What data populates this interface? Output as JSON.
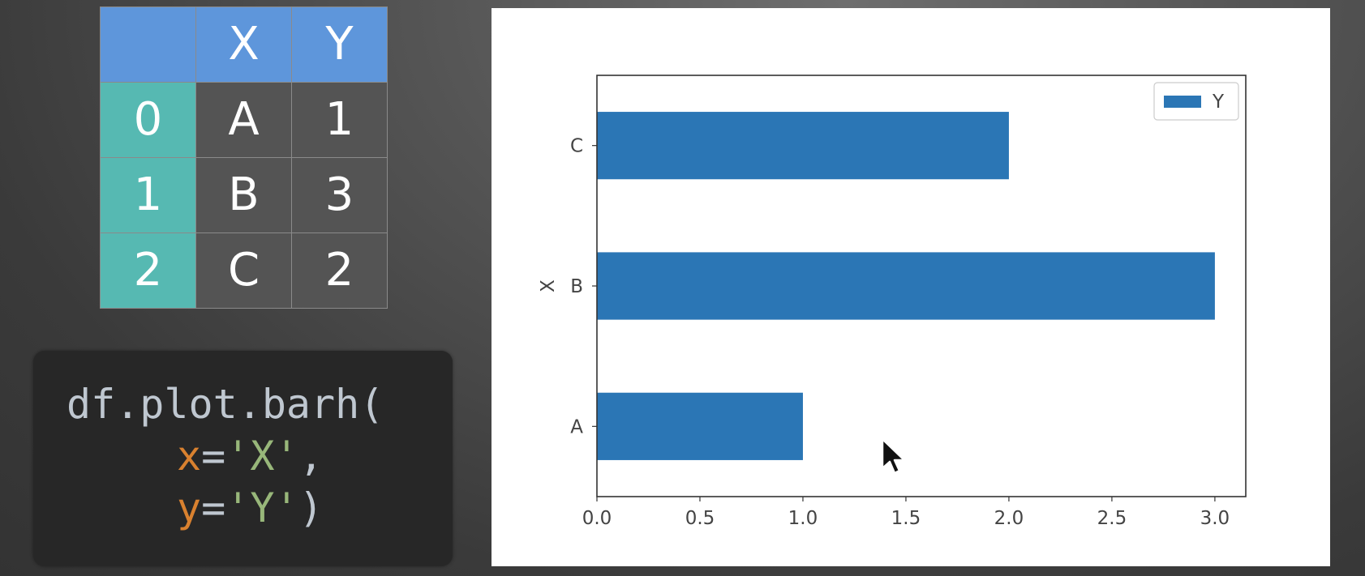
{
  "table": {
    "header": [
      "",
      "X",
      "Y"
    ],
    "rows": [
      {
        "index": "0",
        "X": "A",
        "Y": "1"
      },
      {
        "index": "1",
        "X": "B",
        "Y": "3"
      },
      {
        "index": "2",
        "X": "C",
        "Y": "2"
      }
    ]
  },
  "code": {
    "line1": "df.plot.barh(",
    "line2_kw": "x",
    "line2_op": "=",
    "line2_str": "'X'",
    "line2_tail": ",",
    "line3_kw": "y",
    "line3_op": "=",
    "line3_str": "'Y'",
    "line3_tail": ")"
  },
  "chart_data": {
    "type": "bar",
    "orientation": "horizontal",
    "categories": [
      "A",
      "B",
      "C"
    ],
    "series": [
      {
        "name": "Y",
        "values": [
          1,
          3,
          2
        ],
        "color": "#2b76b5"
      }
    ],
    "xlim": [
      0,
      3.15
    ],
    "xticks": [
      "0.0",
      "0.5",
      "1.0",
      "1.5",
      "2.0",
      "2.5",
      "3.0"
    ],
    "ylabel": "X",
    "xlabel": "",
    "title": "",
    "grid": false,
    "legend": "top-right"
  },
  "colors": {
    "header_bg": "#5e96db",
    "index_bg": "#56b9b2",
    "cell_bg": "#545454",
    "bar": "#2b76b5"
  }
}
